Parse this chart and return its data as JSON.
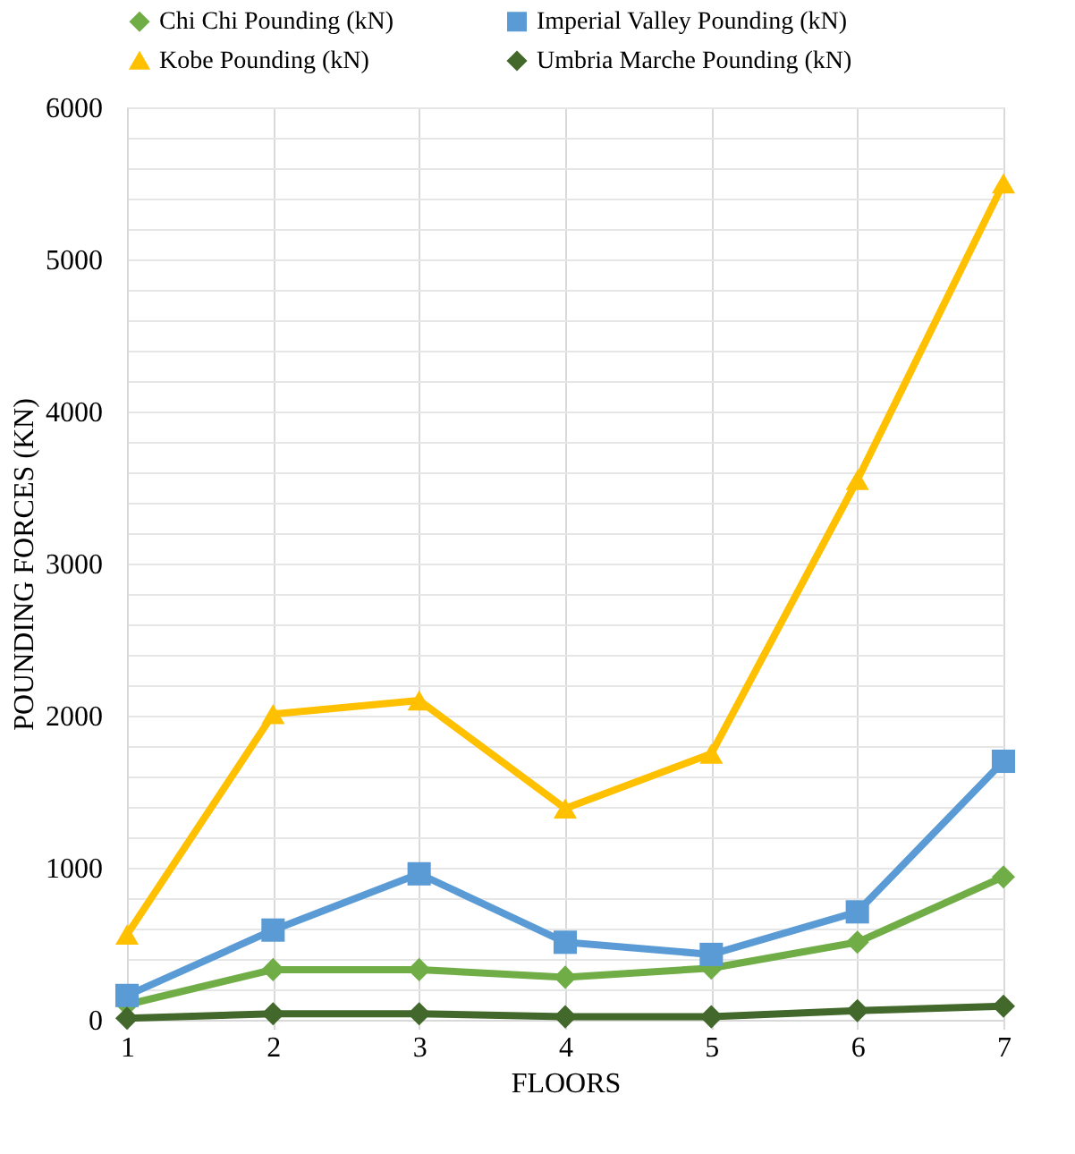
{
  "chart_data": {
    "type": "line",
    "xlabel": "FLOORS",
    "ylabel": "POUNDING FORCES (KN)",
    "x": [
      1,
      2,
      3,
      4,
      5,
      6,
      7
    ],
    "xlim": [
      1,
      7
    ],
    "xticks": [
      1,
      2,
      3,
      4,
      5,
      6,
      7
    ],
    "ylim": [
      0,
      6000
    ],
    "yticks": [
      0,
      {
        "value": 200,
        "label": null
      },
      {
        "value": 400,
        "label": null
      },
      {
        "value": 600,
        "label": null
      },
      {
        "value": 800,
        "label": null
      },
      1000,
      {
        "value": 1200,
        "label": null
      },
      {
        "value": 1400,
        "label": null
      },
      {
        "value": 1600,
        "label": null
      },
      {
        "value": 1800,
        "label": null
      },
      2000,
      {
        "value": 2200,
        "label": null
      },
      {
        "value": 2400,
        "label": null
      },
      {
        "value": 2600,
        "label": null
      },
      {
        "value": 2800,
        "label": null
      },
      3000,
      {
        "value": 3200,
        "label": null
      },
      {
        "value": 3400,
        "label": null
      },
      {
        "value": 3600,
        "label": null
      },
      {
        "value": 3800,
        "label": null
      },
      4000,
      {
        "value": 4200,
        "label": null
      },
      {
        "value": 4400,
        "label": null
      },
      {
        "value": 4600,
        "label": null
      },
      {
        "value": 4800,
        "label": null
      },
      5000,
      {
        "value": 5200,
        "label": null
      },
      {
        "value": 5400,
        "label": null
      },
      {
        "value": 5600,
        "label": null
      },
      {
        "value": 5800,
        "label": null
      },
      6000
    ],
    "grid": true,
    "legend": "top",
    "line_style": "solid",
    "series": [
      {
        "name": "Chi Chi Pounding (kN)",
        "color": "#70ad47",
        "marker": "diamond",
        "values": [
          100,
          330,
          330,
          280,
          340,
          510,
          940
        ]
      },
      {
        "name": "Imperial Valley Pounding (kN)",
        "color": "#5b9bd5",
        "marker": "square",
        "values": [
          160,
          590,
          960,
          510,
          430,
          710,
          1700
        ]
      },
      {
        "name": "Kobe Pounding (kN)",
        "color": "#ffc000",
        "marker": "triangle",
        "values": [
          560,
          2010,
          2100,
          1390,
          1750,
          3550,
          5500
        ]
      },
      {
        "name": "Umbria Marche Pounding (kN)",
        "color": "#43682b",
        "marker": "diamond",
        "values": [
          10,
          40,
          40,
          20,
          20,
          60,
          90
        ]
      }
    ]
  }
}
